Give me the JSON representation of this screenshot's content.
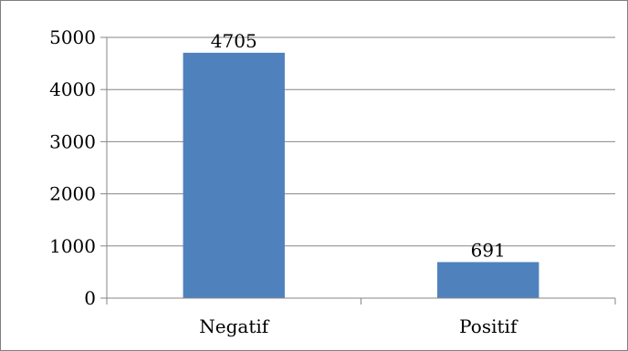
{
  "chart_data": {
    "type": "bar",
    "title": "",
    "xlabel": "",
    "ylabel": "",
    "categories": [
      "Negatif",
      "Positif"
    ],
    "series": [
      {
        "values": [
          4705,
          691
        ]
      }
    ],
    "data_labels": [
      "4705",
      "691"
    ],
    "ylim": [
      0,
      5000
    ],
    "yticks": [
      0,
      1000,
      2000,
      3000,
      4000,
      5000
    ],
    "ytick_labels": [
      "0",
      "1000",
      "2000",
      "3000",
      "4000",
      "5000"
    ],
    "grid": true,
    "legend": "none",
    "colors": {
      "bar": "#4f81bd",
      "grid": "#868686",
      "axis": "#868686",
      "frame": "#7f7f7f"
    }
  }
}
